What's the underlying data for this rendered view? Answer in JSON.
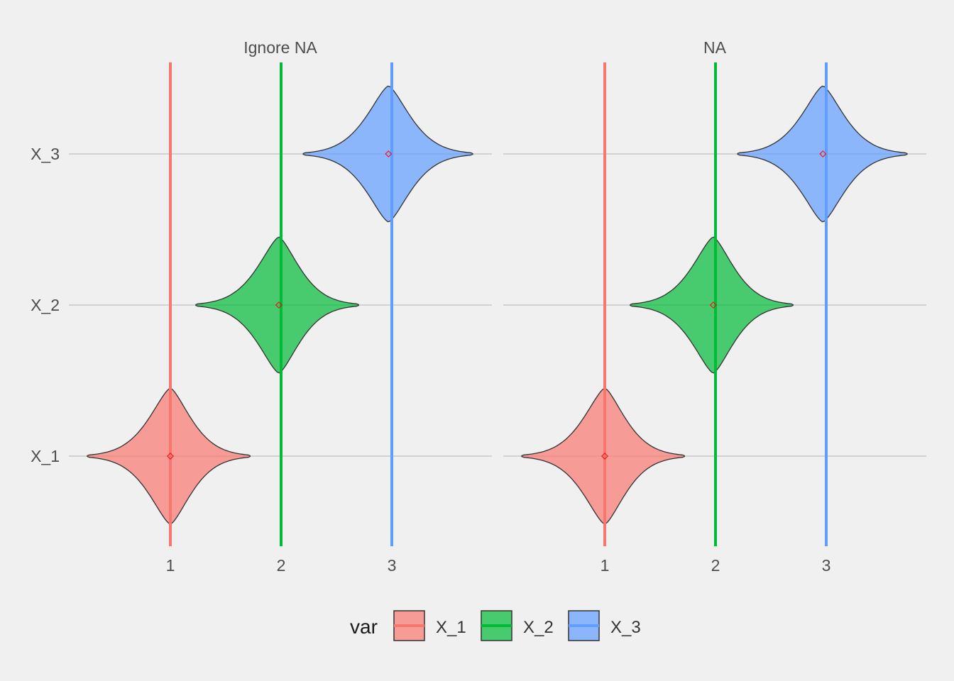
{
  "chart_data": {
    "type": "violin",
    "facets": [
      {
        "title": "Ignore NA",
        "series": [
          {
            "name": "X_1",
            "category": "X_1",
            "mean": 1.0,
            "min": 0.25,
            "max": 1.72,
            "vline": 1
          },
          {
            "name": "X_2",
            "category": "X_2",
            "mean": 1.98,
            "min": 1.23,
            "max": 2.7,
            "vline": 2
          },
          {
            "name": "X_3",
            "category": "X_3",
            "mean": 2.97,
            "min": 2.2,
            "max": 3.73,
            "vline": 3
          }
        ]
      },
      {
        "title": "NA",
        "series": [
          {
            "name": "X_1",
            "category": "X_1",
            "mean": 1.0,
            "min": 0.25,
            "max": 1.72,
            "vline": 1
          },
          {
            "name": "X_2",
            "category": "X_2",
            "mean": 1.98,
            "min": 1.23,
            "max": 2.7,
            "vline": 2
          },
          {
            "name": "X_3",
            "category": "X_3",
            "mean": 2.97,
            "min": 2.2,
            "max": 3.73,
            "vline": 3
          }
        ]
      }
    ],
    "categories": [
      "X_1",
      "X_2",
      "X_3"
    ],
    "x_ticks": [
      "1",
      "2",
      "3"
    ],
    "xlim": [
      0.25,
      4.05
    ],
    "xlabel": "",
    "ylabel": "",
    "grid": true,
    "legend": {
      "title": "var",
      "position": "bottom",
      "entries": [
        "X_1",
        "X_2",
        "X_3"
      ]
    },
    "colors": {
      "X_1": "#f8766d",
      "X_2": "#00ba38",
      "X_3": "#619cff"
    }
  }
}
